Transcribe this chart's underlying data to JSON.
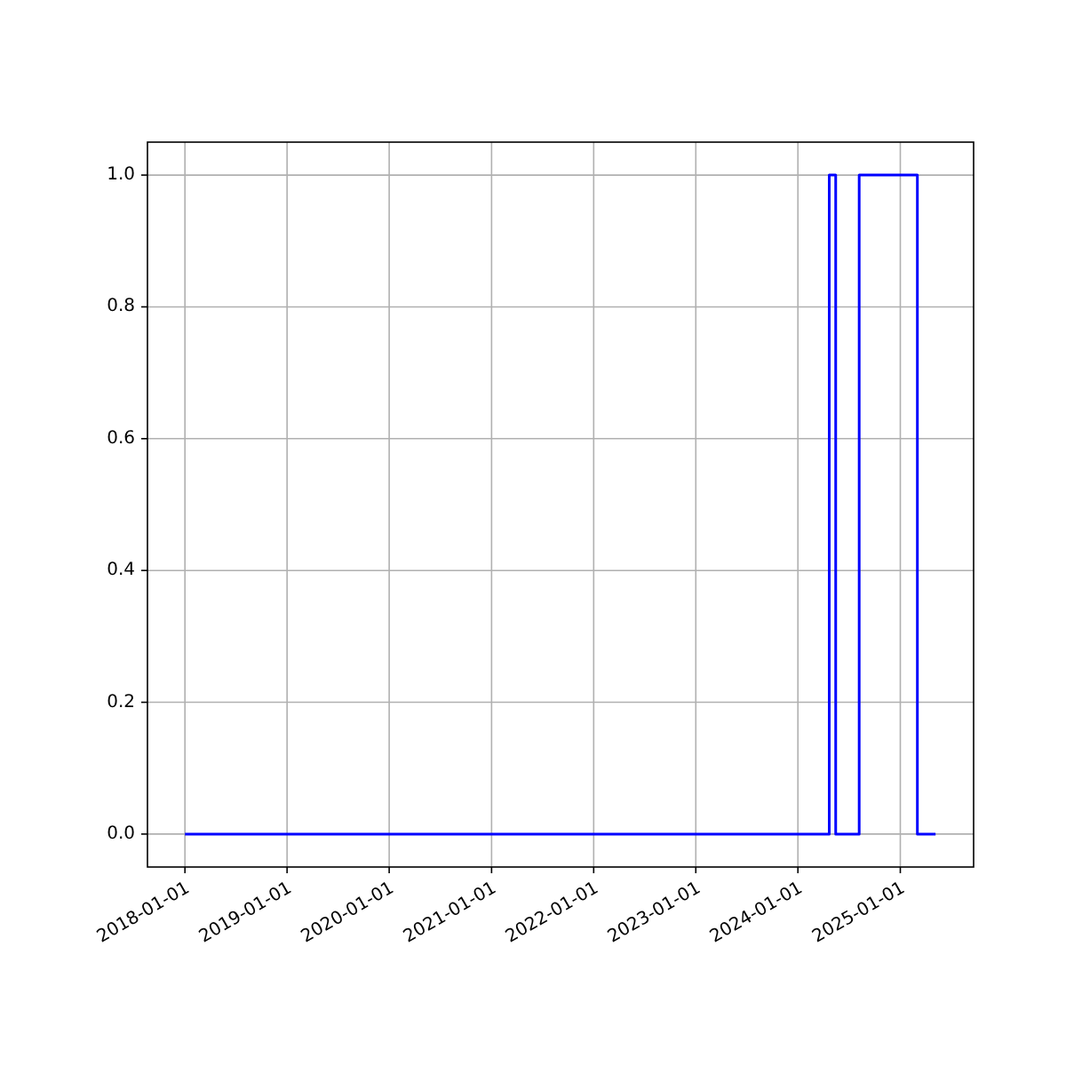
{
  "chart_data": {
    "type": "step",
    "x": [
      "2018-01-01",
      "2024-04-22",
      "2024-05-15",
      "2024-08-07",
      "2025-03-03",
      "2025-05-07"
    ],
    "series": [
      {
        "color": "#0000ff",
        "values": [
          0,
          1,
          0,
          1,
          0,
          0
        ]
      }
    ],
    "xlim": [
      "2017-08-20",
      "2025-09-20"
    ],
    "xticks": [
      {
        "value": "2018-01-01",
        "label": "2018-01-01"
      },
      {
        "value": "2019-01-01",
        "label": "2019-01-01"
      },
      {
        "value": "2020-01-01",
        "label": "2020-01-01"
      },
      {
        "value": "2021-01-01",
        "label": "2021-01-01"
      },
      {
        "value": "2022-01-01",
        "label": "2022-01-01"
      },
      {
        "value": "2023-01-01",
        "label": "2023-01-01"
      },
      {
        "value": "2024-01-01",
        "label": "2024-01-01"
      },
      {
        "value": "2025-01-01",
        "label": "2025-01-01"
      }
    ],
    "ylim": [
      -0.05,
      1.05
    ],
    "yticks": [
      {
        "value": 0,
        "label": "0.0"
      },
      {
        "value": 0.2,
        "label": "0.2"
      },
      {
        "value": 0.4,
        "label": "0.4"
      },
      {
        "value": 0.6,
        "label": "0.6"
      },
      {
        "value": 0.8,
        "label": "0.8"
      },
      {
        "value": 1,
        "label": "1.0"
      }
    ],
    "grid": true
  }
}
